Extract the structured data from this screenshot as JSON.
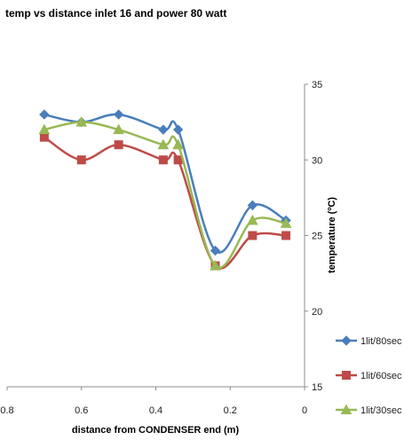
{
  "chart_data": {
    "type": "line",
    "title": "temp vs distance inlet 16 and power 80 watt",
    "xlabel": "distance from CONDENSER end (m)",
    "ylabel": "temperature (ºC)",
    "xlim": [
      0.8,
      0
    ],
    "ylim": [
      15,
      35
    ],
    "x_ticks": [
      "0.8",
      "0.6",
      "0.4",
      "0.2",
      "0"
    ],
    "y_ticks": [
      "15",
      "20",
      "25",
      "30",
      "35"
    ],
    "x_tick_values": [
      0.8,
      0.6,
      0.4,
      0.2,
      0
    ],
    "y_tick_values": [
      15,
      20,
      25,
      30,
      35
    ],
    "y_axis_side": "right",
    "grid": false,
    "legend_position": "bottom-right",
    "smooth": true,
    "series": [
      {
        "name": "1lit/80sec",
        "color": "#4a7ebb",
        "marker": "diamond",
        "x": [
          0.7,
          0.6,
          0.5,
          0.38,
          0.34,
          0.24,
          0.14,
          0.05
        ],
        "y": [
          33,
          32.5,
          33,
          32,
          32,
          24,
          27,
          26
        ]
      },
      {
        "name": "1lit/60sec",
        "color": "#be4b48",
        "marker": "square",
        "x": [
          0.7,
          0.6,
          0.5,
          0.38,
          0.34,
          0.24,
          0.14,
          0.05
        ],
        "y": [
          31.5,
          30,
          31,
          30,
          30,
          23,
          25,
          25
        ]
      },
      {
        "name": "1lit/30sec",
        "color": "#98b954",
        "marker": "triangle",
        "x": [
          0.7,
          0.6,
          0.5,
          0.38,
          0.34,
          0.24,
          0.14,
          0.05
        ],
        "y": [
          32,
          32.5,
          32,
          31,
          31,
          23,
          26,
          25.8
        ]
      }
    ]
  }
}
